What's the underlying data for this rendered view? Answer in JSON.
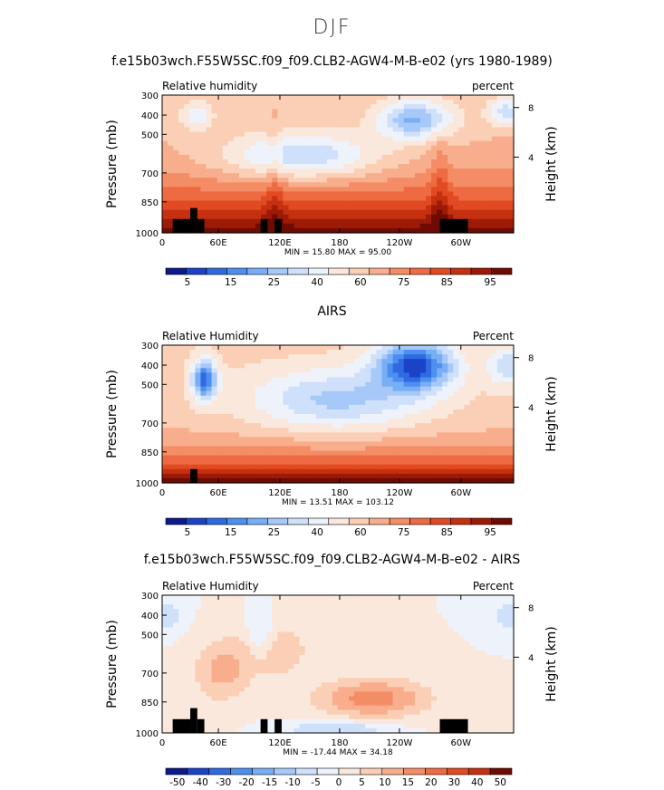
{
  "page_title": "DJF",
  "chart_data": [
    {
      "type": "heatmap",
      "title": "f.e15b03wch.F55W5SC.f09_f09.CLB2-AGW4-M-B-e02 (yrs 1980-1989)",
      "left_label": "Relative humidity",
      "right_label": "percent",
      "ylabel": "Pressure (mb)",
      "y2label": "Height (km)",
      "xticks": [
        "0",
        "60E",
        "120E",
        "180",
        "120W",
        "60W"
      ],
      "yticks": [
        "300",
        "400",
        "500",
        "700",
        "850",
        "1000"
      ],
      "y2ticks": [
        "8",
        "4"
      ],
      "stats": {
        "min_label": "MIN =",
        "min": "15.80",
        "max_label": "MAX =",
        "max": "95.00"
      },
      "colorbar": {
        "labels": [
          "5",
          "15",
          "25",
          "40",
          "60",
          "75",
          "85",
          "95"
        ],
        "colors": [
          "#0c1a8c",
          "#1a43c8",
          "#2f6ae0",
          "#4c8ff0",
          "#78aef5",
          "#a6c9fa",
          "#cfe0fb",
          "#eef3fb",
          "#fbe8dc",
          "#fbcfb5",
          "#f8ae8c",
          "#f48d66",
          "#ee6a42",
          "#e14a22",
          "#c5300f",
          "#9c1a06",
          "#6e0b03"
        ]
      }
    },
    {
      "type": "heatmap",
      "title": "AIRS",
      "left_label": "Relative Humidity",
      "right_label": "Percent",
      "ylabel": "Pressure (mb)",
      "y2label": "Height (km)",
      "xticks": [
        "0",
        "60E",
        "120E",
        "180",
        "120W",
        "60W"
      ],
      "yticks": [
        "300",
        "400",
        "500",
        "700",
        "850",
        "1000"
      ],
      "y2ticks": [
        "8",
        "4"
      ],
      "stats": {
        "min_label": "MIN =",
        "min": "13.51",
        "max_label": "MAX =",
        "max": "103.12"
      },
      "colorbar": {
        "labels": [
          "5",
          "15",
          "25",
          "40",
          "60",
          "75",
          "85",
          "95"
        ],
        "colors": [
          "#0c1a8c",
          "#1a43c8",
          "#2f6ae0",
          "#4c8ff0",
          "#78aef5",
          "#a6c9fa",
          "#cfe0fb",
          "#eef3fb",
          "#fbe8dc",
          "#fbcfb5",
          "#f8ae8c",
          "#f48d66",
          "#ee6a42",
          "#e14a22",
          "#c5300f",
          "#9c1a06",
          "#6e0b03"
        ]
      }
    },
    {
      "type": "heatmap",
      "title": "f.e15b03wch.F55W5SC.f09_f09.CLB2-AGW4-M-B-e02 - AIRS",
      "left_label": "Relative Humidity",
      "right_label": "Percent",
      "ylabel": "Pressure (mb)",
      "y2label": "Height (km)",
      "xticks": [
        "0",
        "60E",
        "120E",
        "180",
        "120W",
        "60W"
      ],
      "yticks": [
        "300",
        "400",
        "500",
        "700",
        "850",
        "1000"
      ],
      "y2ticks": [
        "8",
        "4"
      ],
      "stats": {
        "min_label": "MIN =",
        "min": "-17.44",
        "max_label": "MAX =",
        "max": "34.18"
      },
      "colorbar": {
        "labels": [
          "-50",
          "-40",
          "-30",
          "-20",
          "-15",
          "-10",
          "-5",
          "0",
          "5",
          "10",
          "15",
          "20",
          "30",
          "40",
          "50"
        ],
        "colors": [
          "#0c1a8c",
          "#1a43c8",
          "#2f6ae0",
          "#4c8ff0",
          "#78aef5",
          "#a6c9fa",
          "#cfe0fb",
          "#eef3fb",
          "#fbe8dc",
          "#fbcfb5",
          "#f8ae8c",
          "#f48d66",
          "#ee6a42",
          "#e14a22",
          "#c5300f",
          "#6e0b03"
        ]
      }
    }
  ]
}
